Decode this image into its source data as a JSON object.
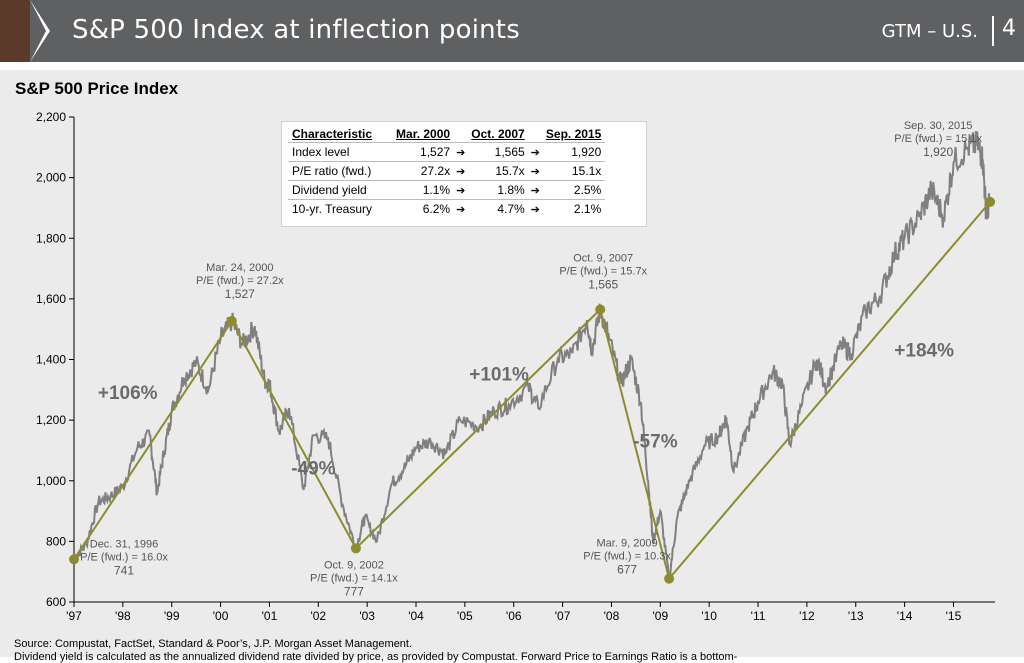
{
  "header": {
    "title": "S&P 500 Index at inflection points",
    "section": "GTM – U.S.",
    "page_number": "4",
    "accent_color": "#5b3a2a",
    "bar_color": "#5f6062"
  },
  "table": {
    "headers": [
      "Characteristic",
      "Mar. 2000",
      "Oct. 2007",
      "Sep. 2015"
    ],
    "rows": [
      {
        "label": "Index level",
        "v1": "1,527",
        "v2": "1,565",
        "v3": "1,920"
      },
      {
        "label": "P/E ratio (fwd.)",
        "v1": "27.2x",
        "v2": "15.7x",
        "v3": "15.1x"
      },
      {
        "label": "Dividend yield",
        "v1": "1.1%",
        "v2": "1.8%",
        "v3": "2.5%"
      },
      {
        "label": "10-yr. Treasury",
        "v1": "6.2%",
        "v2": "4.7%",
        "v3": "2.1%"
      }
    ]
  },
  "footer": {
    "source": "Source: Compustat, FactSet, Standard & Poor’s, J.P. Morgan Asset Management.",
    "note": "Dividend yield is calculated as the annualized dividend rate divided by price, as provided by Compustat. Forward Price to Earnings Ratio is a bottom-"
  },
  "chart_data": {
    "type": "line",
    "title": "S&P 500 Price Index",
    "xlabel": "",
    "ylabel": "",
    "xlim": [
      1997,
      2015.85
    ],
    "ylim": [
      600,
      2200
    ],
    "y_ticks": [
      600,
      800,
      1000,
      1200,
      1400,
      1600,
      1800,
      2000,
      2200
    ],
    "y_tick_labels": [
      "600",
      "800",
      "1,000",
      "1,200",
      "1,400",
      "1,600",
      "1,800",
      "2,000",
      "2,200"
    ],
    "x_ticks": [
      1997,
      1998,
      1999,
      2000,
      2001,
      2002,
      2003,
      2004,
      2005,
      2006,
      2007,
      2008,
      2009,
      2010,
      2011,
      2012,
      2013,
      2014,
      2015
    ],
    "x_tick_labels": [
      "'97",
      "'98",
      "'99",
      "'00",
      "'01",
      "'02",
      "'03",
      "'04",
      "'05",
      "'06",
      "'07",
      "'08",
      "'09",
      "'10",
      "'11",
      "'12",
      "'13",
      "'14",
      "'15"
    ],
    "line_color": "#808080",
    "trend_color": "#8c8c2e",
    "series": [
      {
        "name": "S&P 500 Price Index",
        "points": [
          [
            1997.0,
            741
          ],
          [
            1997.25,
            790
          ],
          [
            1997.5,
            930
          ],
          [
            1997.75,
            950
          ],
          [
            1998.0,
            980
          ],
          [
            1998.3,
            1110
          ],
          [
            1998.55,
            1150
          ],
          [
            1998.7,
            960
          ],
          [
            1998.85,
            1100
          ],
          [
            1999.0,
            1229
          ],
          [
            1999.25,
            1340
          ],
          [
            1999.5,
            1390
          ],
          [
            1999.75,
            1300
          ],
          [
            2000.0,
            1469
          ],
          [
            2000.23,
            1527
          ],
          [
            2000.45,
            1450
          ],
          [
            2000.7,
            1510
          ],
          [
            2000.9,
            1330
          ],
          [
            2001.0,
            1320
          ],
          [
            2001.2,
            1160
          ],
          [
            2001.4,
            1240
          ],
          [
            2001.7,
            970
          ],
          [
            2001.9,
            1150
          ],
          [
            2002.2,
            1140
          ],
          [
            2002.5,
            920
          ],
          [
            2002.77,
            777
          ],
          [
            2002.95,
            880
          ],
          [
            2003.2,
            800
          ],
          [
            2003.5,
            990
          ],
          [
            2003.75,
            1040
          ],
          [
            2004.0,
            1110
          ],
          [
            2004.3,
            1130
          ],
          [
            2004.6,
            1090
          ],
          [
            2004.9,
            1200
          ],
          [
            2005.3,
            1180
          ],
          [
            2005.6,
            1230
          ],
          [
            2005.9,
            1250
          ],
          [
            2006.3,
            1310
          ],
          [
            2006.5,
            1240
          ],
          [
            2006.9,
            1400
          ],
          [
            2007.2,
            1420
          ],
          [
            2007.5,
            1530
          ],
          [
            2007.6,
            1430
          ],
          [
            2007.77,
            1565
          ],
          [
            2007.95,
            1470
          ],
          [
            2008.2,
            1320
          ],
          [
            2008.4,
            1400
          ],
          [
            2008.6,
            1260
          ],
          [
            2008.75,
            1000
          ],
          [
            2008.85,
            800
          ],
          [
            2009.0,
            900
          ],
          [
            2009.18,
            677
          ],
          [
            2009.35,
            880
          ],
          [
            2009.6,
            1000
          ],
          [
            2009.9,
            1115
          ],
          [
            2010.2,
            1150
          ],
          [
            2010.35,
            1210
          ],
          [
            2010.5,
            1030
          ],
          [
            2010.8,
            1180
          ],
          [
            2011.0,
            1260
          ],
          [
            2011.3,
            1360
          ],
          [
            2011.5,
            1320
          ],
          [
            2011.65,
            1120
          ],
          [
            2011.9,
            1250
          ],
          [
            2012.2,
            1400
          ],
          [
            2012.4,
            1310
          ],
          [
            2012.7,
            1450
          ],
          [
            2012.9,
            1420
          ],
          [
            2013.2,
            1560
          ],
          [
            2013.5,
            1610
          ],
          [
            2013.8,
            1750
          ],
          [
            2014.0,
            1800
          ],
          [
            2014.3,
            1870
          ],
          [
            2014.55,
            1960
          ],
          [
            2014.8,
            1870
          ],
          [
            2015.0,
            2050
          ],
          [
            2015.3,
            2100
          ],
          [
            2015.5,
            2110
          ],
          [
            2015.6,
            2060
          ],
          [
            2015.67,
            1880
          ],
          [
            2015.75,
            1920
          ]
        ]
      }
    ],
    "inflection_points": [
      {
        "x": 1997.0,
        "y": 741,
        "date": "Dec. 31, 1996",
        "pe": "P/E (fwd.) = 16.0x",
        "level": "741"
      },
      {
        "x": 2000.23,
        "y": 1527,
        "date": "Mar. 24, 2000",
        "pe": "P/E (fwd.) = 27.2x",
        "level": "1,527"
      },
      {
        "x": 2002.77,
        "y": 777,
        "date": "Oct. 9, 2002",
        "pe": "P/E (fwd.) = 14.1x",
        "level": "777"
      },
      {
        "x": 2007.77,
        "y": 1565,
        "date": "Oct. 9, 2007",
        "pe": "P/E (fwd.) = 15.7x",
        "level": "1,565"
      },
      {
        "x": 2009.18,
        "y": 677,
        "date": "Mar. 9, 2009",
        "pe": "P/E (fwd.) = 10.3x",
        "level": "677"
      },
      {
        "x": 2015.75,
        "y": 1920,
        "date": "Sep. 30, 2015",
        "pe": "P/E (fwd.) = 15.1x",
        "level": "1,920"
      }
    ],
    "annotations": [
      {
        "text": "+106%",
        "x": 1998.1,
        "y": 1270
      },
      {
        "text": "-49%",
        "x": 2001.9,
        "y": 1020
      },
      {
        "text": "+101%",
        "x": 2005.7,
        "y": 1330
      },
      {
        "text": "-57%",
        "x": 2008.9,
        "y": 1110
      },
      {
        "text": "+184%",
        "x": 2014.4,
        "y": 1410
      }
    ]
  }
}
